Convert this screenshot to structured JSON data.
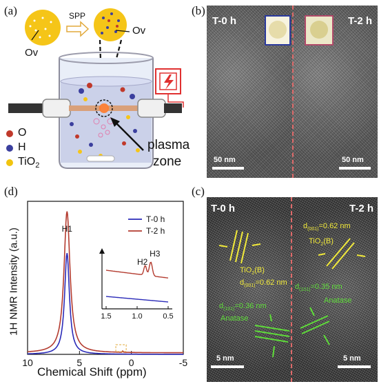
{
  "panel_labels": {
    "a": "(a)",
    "b": "(b)",
    "c": "(c)",
    "d": "(d)"
  },
  "panel_a": {
    "ov_left": "Ov",
    "ov_right": "Ov",
    "spp": "SPP",
    "legend": [
      {
        "label": "O",
        "color": "#c0392b"
      },
      {
        "label": "H",
        "color": "#3b3f9e"
      },
      {
        "label": "TiO",
        "sub": "2",
        "color": "#f1c40f"
      }
    ],
    "plasma_line1": "plasma",
    "plasma_line2": "zone",
    "colors": {
      "particle": "#f5c518",
      "electrode": "#d9a07a",
      "warning": "#e03030"
    }
  },
  "panel_b": {
    "left_title": "T-0 h",
    "right_title": "T-2 h",
    "left_scale": "50 nm",
    "right_scale": "50 nm",
    "colors": {
      "left_frame": "#2b3a9e",
      "right_frame": "#b04a6a"
    }
  },
  "panel_c": {
    "left_title": "T-0 h",
    "right_title": "T-2 h",
    "left_scale": "5 nm",
    "right_scale": "5 nm",
    "annotations": {
      "r_d": "d",
      "r_d_sub": "(001)",
      "r_d_val": "=0.62 nm",
      "r_tio2": "TiO",
      "r_tio2_sub": "2",
      "r_tio2_end": "(B)",
      "l_tio2": "TiO",
      "l_tio2_sub": "2",
      "l_tio2_end": "(B)",
      "l_d": "d",
      "l_d_sub": "(001)",
      "l_d_val": "=0.62 nm",
      "l_a": "d",
      "l_a_sub": "(101)",
      "l_a_val": "=0.36 nm",
      "l_anatase": "Anatase",
      "r_a": "d",
      "r_a_sub": "(101)",
      "r_a_val": "=0.35 nm",
      "r_anatase": "Anatase"
    }
  },
  "chart_data": {
    "type": "line",
    "xlabel": "Chemical Shift (ppm)",
    "ylabel": "1H NMR Intensity (a.u.)",
    "xlim": [
      10,
      -5
    ],
    "xticks": [
      "10",
      "5",
      "0",
      "-5"
    ],
    "legend": [
      "T-0 h",
      "T-2 h"
    ],
    "legend_placement": "top-right",
    "series": [
      {
        "name": "T-0 h",
        "color": "#2a2ab8",
        "peaks": [
          {
            "x": 6.2,
            "height": 0.68,
            "width": 0.28
          }
        ],
        "baseline": 0.0
      },
      {
        "name": "T-2 h",
        "color": "#b33a2e",
        "peaks": [
          {
            "x": 6.2,
            "height": 0.95,
            "width": 0.35
          }
        ],
        "baseline": 0.01
      }
    ],
    "peak_labels": [
      {
        "label": "H1",
        "x": 6.2
      }
    ],
    "inset": {
      "xlim": [
        1.5,
        0.5
      ],
      "xticks": [
        "1.5",
        "1.0",
        "0.5"
      ],
      "peak_labels": [
        {
          "label": "H2",
          "x": 0.87
        },
        {
          "label": "H3",
          "x": 0.78
        }
      ]
    }
  }
}
